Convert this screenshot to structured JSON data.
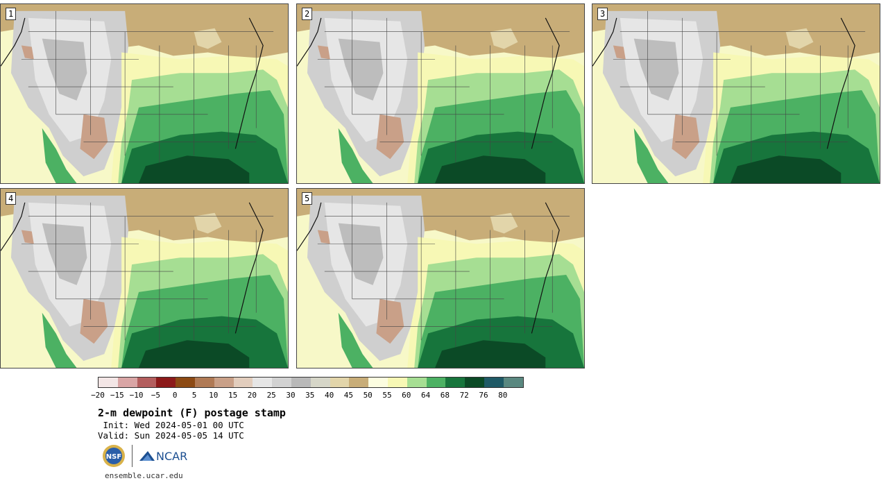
{
  "panels": [
    {
      "label": "1"
    },
    {
      "label": "2"
    },
    {
      "label": "3"
    },
    {
      "label": "4"
    },
    {
      "label": "5"
    }
  ],
  "colorbar": {
    "colors": [
      "#f3e6e6",
      "#d9a5a5",
      "#b35e5e",
      "#8c1a1a",
      "#8c4a14",
      "#b07a55",
      "#c9a088",
      "#e2cdbd",
      "#e6e6e6",
      "#d2d2d2",
      "#b9b9b9",
      "#d6d6c8",
      "#e2d5aa",
      "#c8ad78",
      "#fcfde0",
      "#f7f8b5",
      "#a6de93",
      "#4cb163",
      "#17753c",
      "#0b4a26",
      "#1f5a66",
      "#5a8880"
    ],
    "ticks": [
      "−20",
      "−15",
      "−10",
      "−5",
      "0",
      "5",
      "10",
      "15",
      "20",
      "25",
      "30",
      "35",
      "40",
      "45",
      "50",
      "55",
      "60",
      "64",
      "68",
      "72",
      "76",
      "80"
    ]
  },
  "title": "2-m dewpoint (F) postage stamp",
  "init": " Init: Wed 2024-05-01 00 UTC",
  "valid": "Valid: Sun 2024-05-05 14 UTC",
  "logos": {
    "nsf": "NSF",
    "ncar": "NCAR"
  },
  "footer": "ensemble.ucar.edu",
  "icons": {
    "nsf_logo": "nsf-logo-icon",
    "ncar_logo": "ncar-logo-icon"
  }
}
